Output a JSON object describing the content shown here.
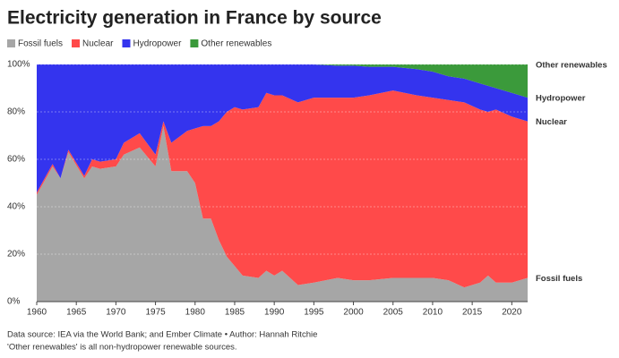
{
  "chart_data": {
    "type": "stacked-area",
    "title": "Electricity generation in France by source",
    "source": "Data source: IEA via the World Bank; and Ember Climate • Author: Hannah Ritchie",
    "note": "'Other renewables' is all non-hydropower renewable sources.",
    "x": [
      1960,
      1962,
      1963,
      1964,
      1966,
      1967,
      1968,
      1970,
      1971,
      1973,
      1975,
      1976,
      1977,
      1979,
      1980,
      1981,
      1982,
      1983,
      1984,
      1985,
      1986,
      1988,
      1989,
      1990,
      1991,
      1993,
      1995,
      1998,
      2000,
      2002,
      2005,
      2008,
      2010,
      2012,
      2014,
      2016,
      2017,
      2018,
      2020,
      2022
    ],
    "series": [
      {
        "name": "Fossil fuels",
        "color": "#a6a6a6",
        "values": [
          45,
          57,
          52,
          63,
          52,
          57,
          56,
          57,
          62,
          65,
          57,
          74,
          55,
          55,
          50,
          35,
          35,
          26,
          19,
          15,
          11,
          10,
          13,
          11,
          13,
          7,
          8,
          10,
          9,
          9,
          10,
          10,
          10,
          9,
          6,
          8,
          11,
          8,
          8,
          10
        ]
      },
      {
        "name": "Nuclear",
        "color": "#ff4a4a",
        "values": [
          1,
          1,
          0,
          1,
          1,
          3,
          3,
          3,
          5,
          6,
          5,
          2,
          12,
          17,
          23,
          39,
          39,
          50,
          61,
          67,
          70,
          72,
          75,
          76,
          74,
          77,
          78,
          76,
          77,
          78,
          79,
          77,
          76,
          76,
          78,
          73,
          69,
          73,
          70,
          66
        ]
      },
      {
        "name": "Hydropower",
        "color": "#3434ee",
        "values": [
          54,
          42,
          48,
          36,
          47,
          40,
          41,
          40,
          33,
          29,
          38,
          24,
          33,
          28,
          27,
          26,
          26,
          24,
          20,
          18,
          19,
          18,
          12,
          13,
          13,
          16,
          14,
          13.5,
          13.5,
          12,
          10,
          11,
          11,
          10,
          10,
          11,
          11,
          9,
          10,
          10
        ]
      },
      {
        "name": "Other renewables",
        "color": "#3b9a3b",
        "values": [
          0,
          0,
          0,
          0,
          0,
          0,
          0,
          0,
          0,
          0,
          0,
          0,
          0,
          0,
          0,
          0,
          0,
          0,
          0,
          0,
          0,
          0,
          0,
          0,
          0,
          0,
          0,
          0.5,
          0.5,
          1,
          1,
          2,
          3,
          5,
          6,
          8,
          9,
          10,
          12,
          14
        ]
      }
    ],
    "xlim": [
      1960,
      2022
    ],
    "ylim": [
      0,
      100
    ],
    "xticks": [
      1960,
      1965,
      1970,
      1975,
      1980,
      1985,
      1990,
      1995,
      2000,
      2005,
      2010,
      2015,
      2020
    ],
    "yticks": [
      {
        "value": 0,
        "label": "0%"
      },
      {
        "value": 20,
        "label": "20%"
      },
      {
        "value": 40,
        "label": "40%"
      },
      {
        "value": 60,
        "label": "60%"
      },
      {
        "value": 80,
        "label": "80%"
      },
      {
        "value": 100,
        "label": "100%"
      }
    ],
    "grid": true
  }
}
